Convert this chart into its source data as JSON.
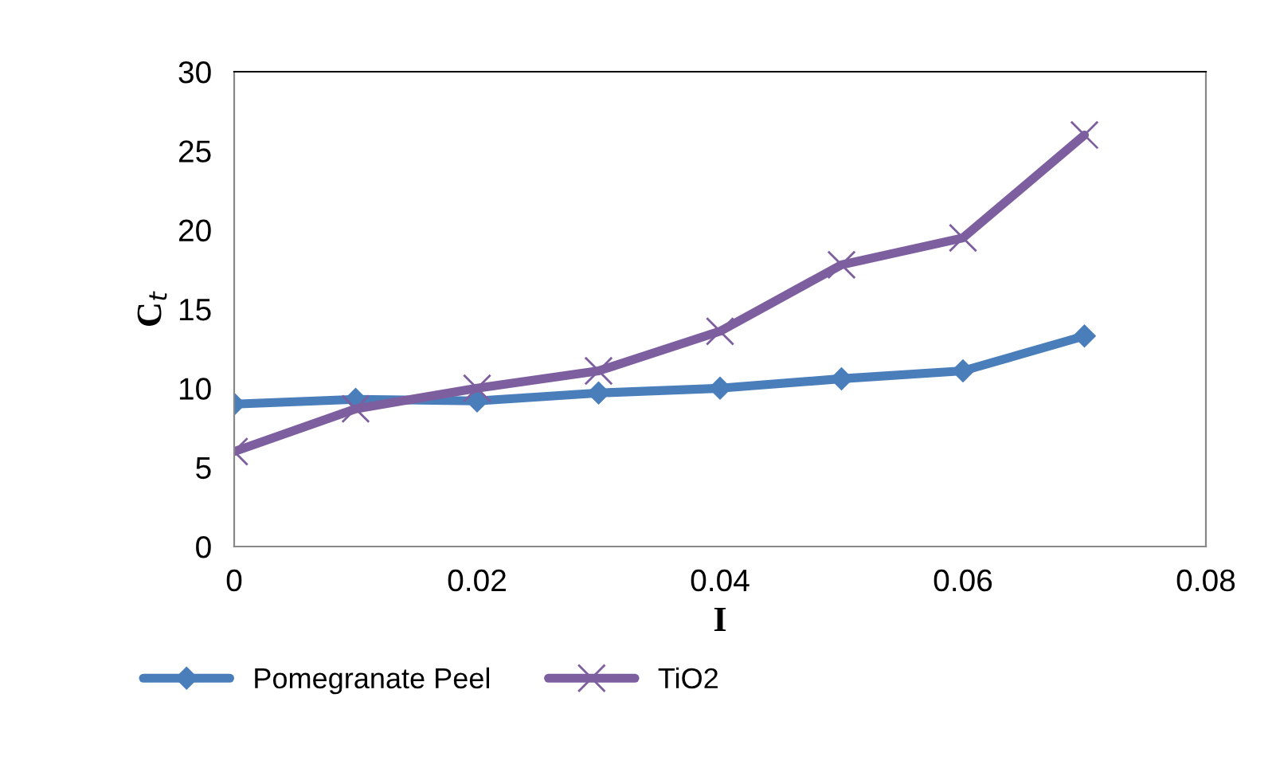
{
  "chart_data": {
    "type": "line",
    "xlabel": "I",
    "ylabel": "C$_{t}$",
    "x": [
      0,
      0.01,
      0.02,
      0.03,
      0.04,
      0.05,
      0.06,
      0.07
    ],
    "series": [
      {
        "name": "Pomegranate Peel",
        "color": "#4a7ebb",
        "marker": "diamond",
        "values": [
          9.0,
          9.3,
          9.2,
          9.7,
          10.0,
          10.6,
          11.1,
          13.3
        ]
      },
      {
        "name": "TiO2",
        "color": "#7d5fa0",
        "marker": "cross",
        "values": [
          6.0,
          8.7,
          10.0,
          11.1,
          13.6,
          17.8,
          19.5,
          26.0
        ]
      }
    ],
    "xlim": [
      0,
      0.08
    ],
    "xticks": [
      0,
      0.02,
      0.04,
      0.06,
      0.08
    ],
    "ylim": [
      0,
      30
    ],
    "yticks": [
      0,
      5,
      10,
      15,
      20,
      25,
      30
    ],
    "grid": false,
    "legend": "bottom left",
    "line_style": "solid"
  }
}
